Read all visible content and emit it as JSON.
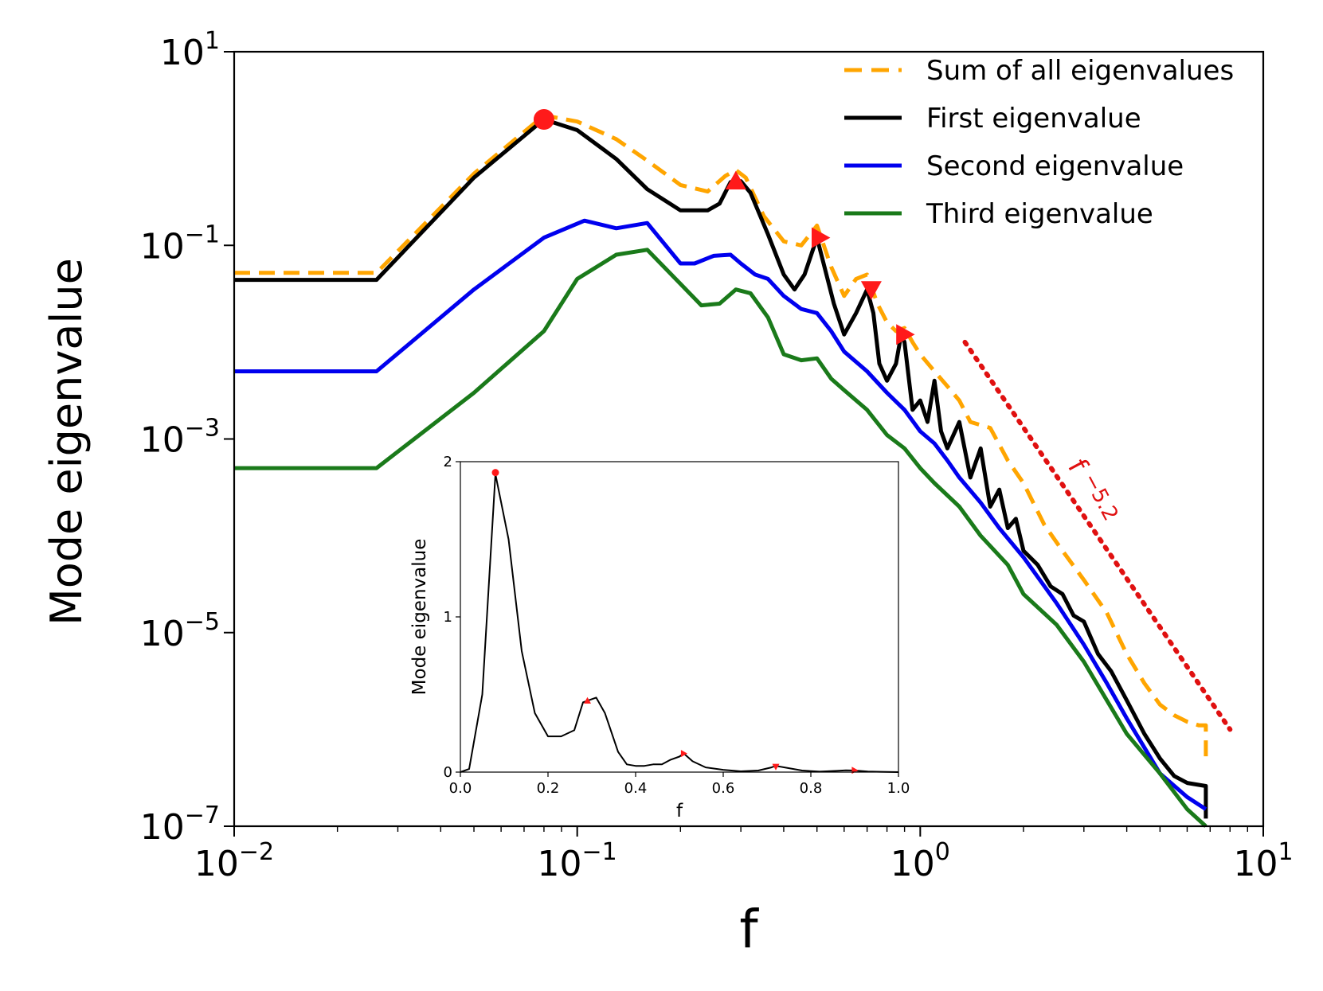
{
  "chart_data": {
    "type": "line",
    "title": "",
    "xlabel": "f",
    "ylabel": "Mode eigenvalue",
    "xscale": "log",
    "yscale": "log",
    "xlim": [
      0.01,
      10
    ],
    "ylim": [
      1e-07,
      10
    ],
    "grid": false,
    "legend_position": "top-right",
    "x_ticks": [
      {
        "base": "10",
        "exp": "−2"
      },
      {
        "base": "10",
        "exp": "−1"
      },
      {
        "base": "10",
        "exp": "0"
      },
      {
        "base": "10",
        "exp": "1"
      }
    ],
    "y_ticks": [
      {
        "base": "10",
        "exp": "−7"
      },
      {
        "base": "10",
        "exp": "−5"
      },
      {
        "base": "10",
        "exp": "−3"
      },
      {
        "base": "10",
        "exp": "−1"
      },
      {
        "base": "10",
        "exp": "1"
      }
    ],
    "series": [
      {
        "name": "Sum of all eigenvalues",
        "color": "#ffa500",
        "style": "dashed",
        "x": [
          0.01,
          0.026,
          0.05,
          0.08,
          0.1,
          0.13,
          0.16,
          0.2,
          0.24,
          0.27,
          0.29,
          0.31,
          0.35,
          0.4,
          0.45,
          0.5,
          0.55,
          0.6,
          0.65,
          0.7,
          0.75,
          0.8,
          0.85,
          0.9,
          0.95,
          1.0,
          1.1,
          1.2,
          1.3,
          1.4,
          1.6,
          1.8,
          2.0,
          2.3,
          2.6,
          3.0,
          3.5,
          4.0,
          4.5,
          5.0,
          5.5,
          6.0,
          6.5,
          6.8,
          6.8
        ],
        "y": [
          0.052,
          0.052,
          0.55,
          2.2,
          1.9,
          1.25,
          0.75,
          0.42,
          0.36,
          0.52,
          0.6,
          0.5,
          0.2,
          0.11,
          0.1,
          0.16,
          0.06,
          0.03,
          0.045,
          0.05,
          0.025,
          0.016,
          0.013,
          0.014,
          0.01,
          0.0075,
          0.005,
          0.0035,
          0.0025,
          0.0015,
          0.0013,
          0.0006,
          0.00035,
          0.00013,
          7e-05,
          3.5e-05,
          1.6e-05,
          6e-06,
          3e-06,
          1.8e-06,
          1.4e-06,
          1.2e-06,
          1.1e-06,
          1.1e-06,
          5e-07
        ]
      },
      {
        "name": "First eigenvalue",
        "color": "#000000",
        "style": "solid",
        "x": [
          0.01,
          0.026,
          0.05,
          0.08,
          0.1,
          0.13,
          0.16,
          0.2,
          0.24,
          0.26,
          0.28,
          0.3,
          0.32,
          0.36,
          0.4,
          0.43,
          0.46,
          0.5,
          0.52,
          0.56,
          0.6,
          0.65,
          0.7,
          0.73,
          0.76,
          0.8,
          0.85,
          0.88,
          0.9,
          0.95,
          1.0,
          1.05,
          1.1,
          1.15,
          1.2,
          1.3,
          1.4,
          1.5,
          1.6,
          1.7,
          1.8,
          1.9,
          2.0,
          2.2,
          2.4,
          2.6,
          2.8,
          3.0,
          3.3,
          3.6,
          4.0,
          4.5,
          5.0,
          5.5,
          6.0,
          6.8,
          6.8
        ],
        "y": [
          0.044,
          0.044,
          0.5,
          2.0,
          1.55,
          0.78,
          0.38,
          0.23,
          0.23,
          0.27,
          0.45,
          0.46,
          0.35,
          0.13,
          0.05,
          0.035,
          0.05,
          0.12,
          0.07,
          0.025,
          0.012,
          0.02,
          0.035,
          0.02,
          0.006,
          0.004,
          0.006,
          0.012,
          0.01,
          0.002,
          0.0025,
          0.0015,
          0.004,
          0.0012,
          0.0008,
          0.0015,
          0.0004,
          0.0008,
          0.0002,
          0.0003,
          0.00012,
          0.00015,
          7e-05,
          5e-05,
          3e-05,
          2.5e-05,
          1.5e-05,
          1.3e-05,
          6e-06,
          4e-06,
          2e-06,
          9e-07,
          5e-07,
          3.3e-07,
          2.8e-07,
          2.6e-07,
          1.2e-07
        ]
      },
      {
        "name": "Second eigenvalue",
        "color": "#0000ee",
        "style": "solid",
        "x": [
          0.01,
          0.026,
          0.05,
          0.08,
          0.105,
          0.13,
          0.16,
          0.2,
          0.22,
          0.25,
          0.28,
          0.3,
          0.33,
          0.36,
          0.4,
          0.45,
          0.5,
          0.55,
          0.6,
          0.7,
          0.8,
          0.9,
          1.0,
          1.1,
          1.2,
          1.3,
          1.5,
          1.7,
          2.0,
          2.5,
          3.0,
          3.5,
          4.0,
          4.5,
          5.0,
          6.0,
          6.8
        ],
        "y": [
          0.005,
          0.005,
          0.035,
          0.12,
          0.18,
          0.15,
          0.17,
          0.065,
          0.065,
          0.078,
          0.08,
          0.065,
          0.05,
          0.045,
          0.03,
          0.022,
          0.02,
          0.013,
          0.008,
          0.005,
          0.003,
          0.002,
          0.0012,
          0.0009,
          0.0006,
          0.0004,
          0.00022,
          0.00012,
          6e-05,
          2e-05,
          7.5e-06,
          3e-06,
          1.3e-06,
          6.5e-07,
          3.5e-07,
          2e-07,
          1.5e-07
        ]
      },
      {
        "name": "Third eigenvalue",
        "color": "#1a7a1a",
        "style": "solid",
        "x": [
          0.01,
          0.026,
          0.05,
          0.08,
          0.1,
          0.13,
          0.16,
          0.2,
          0.23,
          0.26,
          0.29,
          0.32,
          0.36,
          0.4,
          0.45,
          0.5,
          0.55,
          0.6,
          0.7,
          0.8,
          0.9,
          1.0,
          1.1,
          1.3,
          1.5,
          1.8,
          2.0,
          2.5,
          3.0,
          3.5,
          4.0,
          5.0,
          6.0,
          6.8
        ],
        "y": [
          0.0005,
          0.0005,
          0.003,
          0.013,
          0.045,
          0.08,
          0.09,
          0.04,
          0.024,
          0.025,
          0.035,
          0.032,
          0.018,
          0.0075,
          0.0065,
          0.0068,
          0.0042,
          0.0032,
          0.002,
          0.0011,
          0.0008,
          0.0005,
          0.00035,
          0.0002,
          0.0001,
          5e-05,
          2.5e-05,
          1.2e-05,
          5e-06,
          2e-06,
          9e-07,
          3.5e-07,
          1.5e-07,
          1e-07
        ]
      },
      {
        "name": "f^-5.2 reference",
        "color": "#e01010",
        "style": "dotted",
        "x": [
          1.35,
          8.0
        ],
        "y": [
          0.01,
          1e-06
        ]
      }
    ],
    "markers": [
      {
        "shape": "circle",
        "x": 0.08,
        "y": 2.0,
        "color": "#ff1a1a"
      },
      {
        "shape": "triangle-up",
        "x": 0.29,
        "y": 0.46,
        "color": "#ff1a1a"
      },
      {
        "shape": "triangle-right",
        "x": 0.51,
        "y": 0.12,
        "color": "#ff1a1a"
      },
      {
        "shape": "triangle-down",
        "x": 0.72,
        "y": 0.035,
        "color": "#ff1a1a"
      },
      {
        "shape": "triangle-right",
        "x": 0.9,
        "y": 0.012,
        "color": "#ff1a1a"
      }
    ],
    "annotation": {
      "base": "f",
      "exp": "−5.2",
      "color": "#e01010"
    },
    "inset": {
      "type": "line",
      "xlabel": "f",
      "ylabel": "Mode eigenvalue",
      "xlim": [
        0.0,
        1.0
      ],
      "ylim": [
        0,
        2
      ],
      "x_ticks": [
        "0.0",
        "0.2",
        "0.4",
        "0.6",
        "0.8",
        "1.0"
      ],
      "x_tick_values": [
        0.0,
        0.2,
        0.4,
        0.6,
        0.8,
        1.0
      ],
      "y_ticks": [
        "0",
        "1",
        "2"
      ],
      "y_tick_values": [
        0,
        1,
        2
      ],
      "series": [
        {
          "name": "First eigenvalue",
          "color": "#000000",
          "x": [
            0.0,
            0.02,
            0.05,
            0.08,
            0.11,
            0.14,
            0.17,
            0.2,
            0.23,
            0.26,
            0.28,
            0.29,
            0.31,
            0.33,
            0.36,
            0.38,
            0.4,
            0.42,
            0.44,
            0.46,
            0.48,
            0.5,
            0.51,
            0.53,
            0.56,
            0.6,
            0.64,
            0.68,
            0.71,
            0.72,
            0.74,
            0.78,
            0.82,
            0.86,
            0.88,
            0.9,
            0.93,
            0.96,
            1.0
          ],
          "y": [
            0.0,
            0.02,
            0.5,
            1.92,
            1.5,
            0.78,
            0.38,
            0.23,
            0.23,
            0.27,
            0.45,
            0.46,
            0.48,
            0.38,
            0.13,
            0.05,
            0.04,
            0.04,
            0.05,
            0.05,
            0.08,
            0.1,
            0.12,
            0.07,
            0.03,
            0.015,
            0.005,
            0.01,
            0.03,
            0.04,
            0.03,
            0.01,
            0.003,
            0.008,
            0.012,
            0.01,
            0.004,
            0.002,
            0.0
          ]
        }
      ],
      "markers": [
        {
          "shape": "circle",
          "x": 0.08,
          "y": 1.93
        },
        {
          "shape": "triangle-up",
          "x": 0.29,
          "y": 0.46
        },
        {
          "shape": "triangle-right",
          "x": 0.51,
          "y": 0.12
        },
        {
          "shape": "triangle-down",
          "x": 0.72,
          "y": 0.035
        },
        {
          "shape": "triangle-right",
          "x": 0.9,
          "y": 0.012
        }
      ]
    }
  }
}
